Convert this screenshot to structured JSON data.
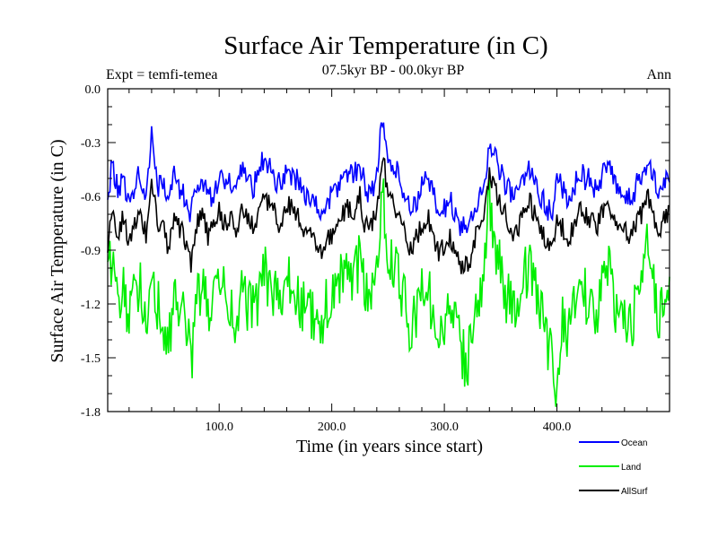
{
  "chart_data": {
    "type": "line",
    "title": "Surface Air Temperature (in C)",
    "subtitle": "07.5kyr BP - 00.0kyr BP",
    "expt_label": "Expt = temfi-temea",
    "season_label": "Ann",
    "xlabel": "Time (in years since start)",
    "ylabel": "Surface Air Temperature (in C)",
    "xlim": [
      1,
      500
    ],
    "ylim": [
      -1.8,
      0.0
    ],
    "xticks": [
      100,
      200,
      300,
      400
    ],
    "xtick_labels": [
      "100.0",
      "200.0",
      "300.0",
      "400.0"
    ],
    "yticks": [
      0.0,
      -0.3,
      -0.6,
      -0.9,
      -1.2,
      -1.5,
      -1.8
    ],
    "ytick_labels": [
      "0.0",
      "-0.3",
      "-0.6",
      "-0.9",
      "-1.2",
      "-1.5",
      "-1.8"
    ],
    "series_anchors": {
      "x": [
        1,
        5,
        10,
        15,
        20,
        25,
        30,
        35,
        40,
        45,
        50,
        55,
        60,
        65,
        70,
        75,
        80,
        85,
        90,
        95,
        100,
        105,
        110,
        115,
        120,
        125,
        130,
        135,
        140,
        145,
        150,
        155,
        160,
        165,
        170,
        175,
        180,
        185,
        190,
        195,
        200,
        205,
        210,
        215,
        220,
        225,
        230,
        235,
        240,
        245,
        250,
        255,
        260,
        265,
        270,
        275,
        280,
        285,
        290,
        295,
        300,
        305,
        310,
        315,
        320,
        325,
        330,
        335,
        340,
        345,
        350,
        355,
        360,
        365,
        370,
        375,
        380,
        385,
        390,
        395,
        400,
        405,
        410,
        415,
        420,
        425,
        430,
        435,
        440,
        445,
        450,
        455,
        460,
        465,
        470,
        475,
        480,
        485,
        490,
        495,
        500
      ]
    },
    "series": [
      {
        "name": "Ocean",
        "color": "#0000ff",
        "values": [
          -0.62,
          -0.4,
          -0.58,
          -0.5,
          -0.66,
          -0.52,
          -0.48,
          -0.63,
          -0.22,
          -0.55,
          -0.5,
          -0.68,
          -0.45,
          -0.56,
          -0.62,
          -0.7,
          -0.55,
          -0.5,
          -0.62,
          -0.58,
          -0.48,
          -0.55,
          -0.52,
          -0.6,
          -0.46,
          -0.52,
          -0.55,
          -0.48,
          -0.38,
          -0.45,
          -0.5,
          -0.55,
          -0.44,
          -0.48,
          -0.52,
          -0.58,
          -0.6,
          -0.65,
          -0.7,
          -0.64,
          -0.6,
          -0.55,
          -0.5,
          -0.45,
          -0.48,
          -0.4,
          -0.58,
          -0.55,
          -0.5,
          -0.15,
          -0.4,
          -0.45,
          -0.48,
          -0.6,
          -0.68,
          -0.62,
          -0.55,
          -0.5,
          -0.6,
          -0.7,
          -0.66,
          -0.62,
          -0.72,
          -0.76,
          -0.78,
          -0.7,
          -0.62,
          -0.55,
          -0.3,
          -0.4,
          -0.45,
          -0.55,
          -0.6,
          -0.58,
          -0.52,
          -0.44,
          -0.5,
          -0.58,
          -0.66,
          -0.7,
          -0.5,
          -0.56,
          -0.62,
          -0.55,
          -0.45,
          -0.5,
          -0.52,
          -0.58,
          -0.48,
          -0.4,
          -0.52,
          -0.6,
          -0.58,
          -0.62,
          -0.55,
          -0.5,
          -0.4,
          -0.48,
          -0.6,
          -0.52,
          -0.5
        ]
      },
      {
        "name": "Land",
        "color": "#00ee00",
        "values": [
          -1.05,
          -0.9,
          -1.25,
          -1.1,
          -1.32,
          -1.15,
          -1.05,
          -1.38,
          -0.95,
          -1.2,
          -1.3,
          -1.48,
          -1.1,
          -1.22,
          -1.3,
          -1.52,
          -1.2,
          -1.1,
          -1.25,
          -1.18,
          -1.08,
          -1.15,
          -1.22,
          -1.4,
          -1.1,
          -1.2,
          -1.25,
          -1.18,
          -1.0,
          -1.1,
          -1.15,
          -1.3,
          -1.05,
          -1.12,
          -1.18,
          -1.22,
          -1.25,
          -1.3,
          -1.4,
          -1.2,
          -1.15,
          -1.12,
          -1.05,
          -1.0,
          -1.08,
          -0.95,
          -1.15,
          -1.1,
          -1.05,
          -0.5,
          -0.92,
          -1.0,
          -1.08,
          -1.2,
          -1.35,
          -1.25,
          -1.15,
          -1.1,
          -1.25,
          -1.4,
          -1.3,
          -1.22,
          -1.35,
          -1.45,
          -1.55,
          -1.3,
          -1.15,
          -1.05,
          -0.6,
          -0.9,
          -1.0,
          -1.15,
          -1.25,
          -1.2,
          -1.1,
          -0.95,
          -1.1,
          -1.25,
          -1.35,
          -1.5,
          -1.72,
          -1.3,
          -1.35,
          -1.2,
          -1.05,
          -1.15,
          -1.18,
          -1.3,
          -1.1,
          -0.95,
          -1.15,
          -1.3,
          -1.25,
          -1.35,
          -1.2,
          -1.1,
          -0.9,
          -1.05,
          -1.3,
          -1.18,
          -1.0
        ]
      },
      {
        "name": "AllSurf",
        "color": "#000000",
        "values": [
          -0.88,
          -0.66,
          -0.8,
          -0.72,
          -0.85,
          -0.74,
          -0.7,
          -0.82,
          -0.5,
          -0.75,
          -0.72,
          -0.9,
          -0.68,
          -0.78,
          -0.84,
          -0.98,
          -0.76,
          -0.7,
          -0.82,
          -0.78,
          -0.68,
          -0.75,
          -0.72,
          -0.8,
          -0.66,
          -0.72,
          -0.76,
          -0.7,
          -0.58,
          -0.66,
          -0.7,
          -0.78,
          -0.64,
          -0.68,
          -0.72,
          -0.8,
          -0.82,
          -0.86,
          -0.92,
          -0.85,
          -0.82,
          -0.76,
          -0.7,
          -0.66,
          -0.68,
          -0.6,
          -0.78,
          -0.75,
          -0.7,
          -0.35,
          -0.6,
          -0.65,
          -0.68,
          -0.8,
          -0.9,
          -0.84,
          -0.76,
          -0.7,
          -0.82,
          -0.92,
          -0.88,
          -0.84,
          -0.92,
          -0.98,
          -1.0,
          -0.9,
          -0.78,
          -0.7,
          -0.45,
          -0.58,
          -0.62,
          -0.72,
          -0.8,
          -0.78,
          -0.72,
          -0.62,
          -0.7,
          -0.78,
          -0.86,
          -0.92,
          -0.76,
          -0.78,
          -0.84,
          -0.76,
          -0.64,
          -0.7,
          -0.72,
          -0.78,
          -0.68,
          -0.6,
          -0.72,
          -0.8,
          -0.78,
          -0.84,
          -0.76,
          -0.7,
          -0.58,
          -0.68,
          -0.82,
          -0.74,
          -0.7
        ]
      }
    ]
  }
}
